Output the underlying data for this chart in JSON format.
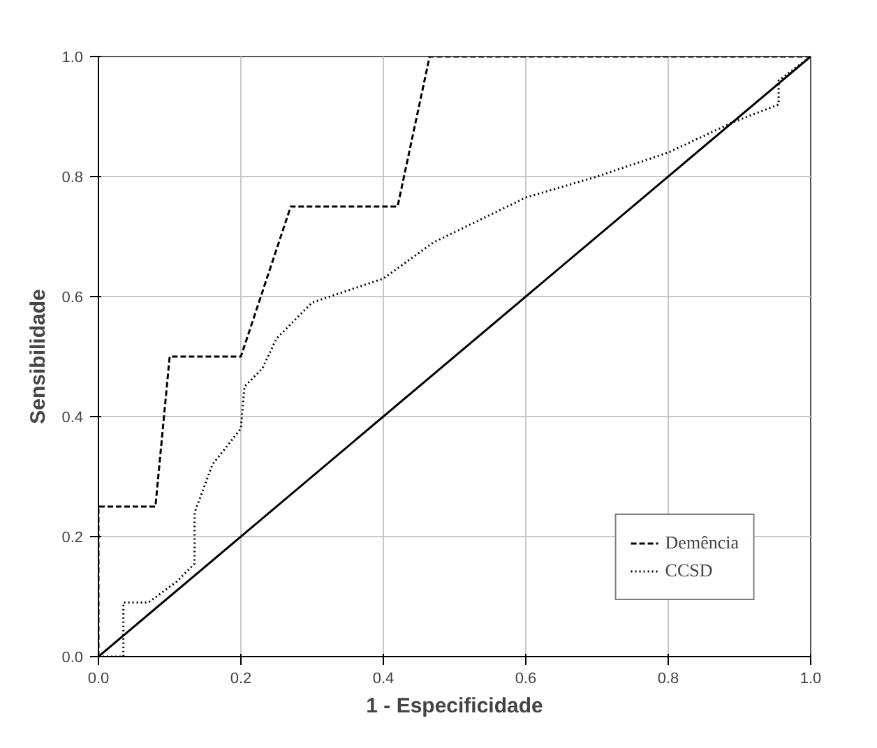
{
  "chart_data": {
    "type": "line",
    "xlabel": "1 - Especificidade",
    "ylabel": "Sensibilidade",
    "xlim": [
      0,
      1
    ],
    "ylim": [
      0,
      1
    ],
    "xticks": [
      {
        "value": 0,
        "label": "0.0"
      },
      0.2,
      0.4,
      0.6,
      0.8,
      {
        "value": 1,
        "label": "1.0"
      }
    ],
    "yticks": [
      {
        "value": 0,
        "label": "0.0"
      },
      0.2,
      0.4,
      0.6,
      0.8,
      {
        "value": 1,
        "label": "1.0"
      }
    ],
    "grid": true,
    "legend": "bottom right",
    "series": [
      {
        "name": "Demência",
        "color": "#000000",
        "line_style": "dashed",
        "x": [
          0,
          0,
          0.08,
          0.1,
          0.2,
          0.27,
          0.42,
          0.465,
          1
        ],
        "values": [
          0,
          0.25,
          0.25,
          0.5,
          0.5,
          0.75,
          0.75,
          1,
          1
        ]
      },
      {
        "name": "CCSD",
        "color": "#000000",
        "line_style": "dotted",
        "x": [
          0,
          0.035,
          0.035,
          0.07,
          0.11,
          0.135,
          0.135,
          0.16,
          0.2,
          0.205,
          0.23,
          0.25,
          0.3,
          0.4,
          0.47,
          0.6,
          0.7,
          0.8,
          0.89,
          0.955,
          0.955,
          1
        ],
        "values": [
          0,
          0,
          0.09,
          0.09,
          0.125,
          0.155,
          0.24,
          0.32,
          0.38,
          0.45,
          0.48,
          0.53,
          0.59,
          0.63,
          0.69,
          0.765,
          0.8,
          0.84,
          0.89,
          0.92,
          0.96,
          1
        ]
      },
      {
        "color": "#000000",
        "line_style": "solid",
        "x": [
          0,
          1
        ],
        "values": [
          0,
          1
        ]
      }
    ]
  }
}
